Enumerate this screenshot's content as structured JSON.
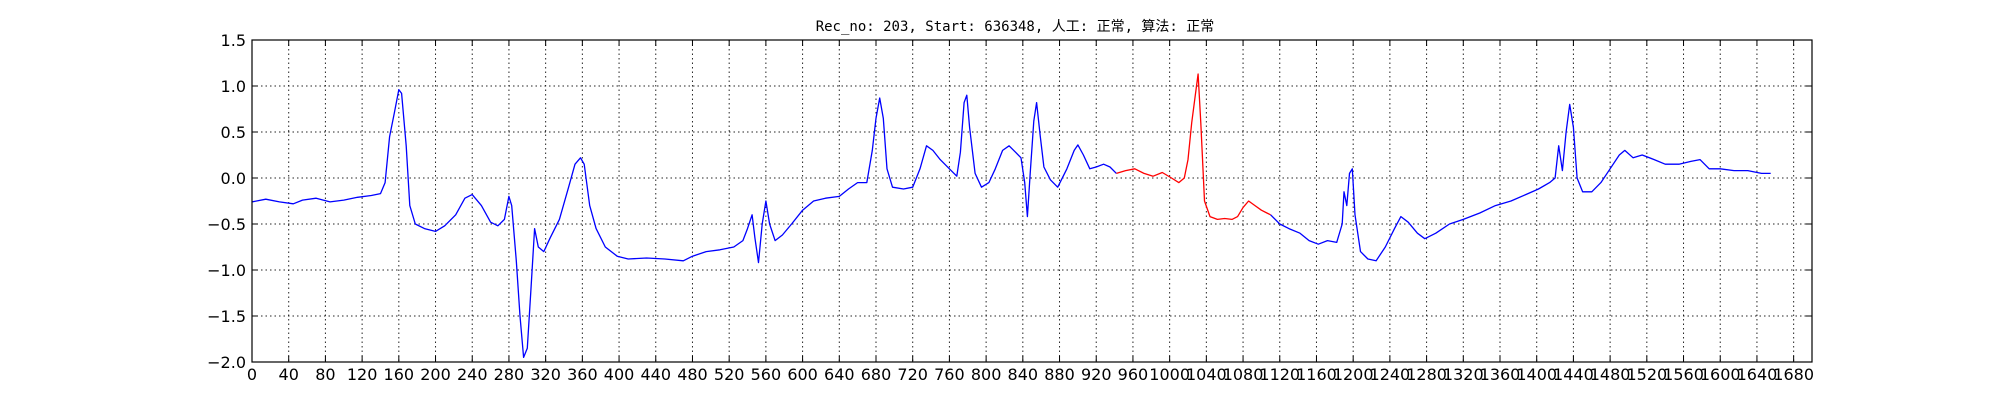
{
  "chart_data": {
    "type": "line",
    "title": "Rec_no: 203, Start: 636348, 人工: 正常, 算法: 正常",
    "xlabel": "",
    "ylabel": "",
    "xlim": [
      0,
      1700
    ],
    "ylim": [
      -2.0,
      1.5
    ],
    "grid": true,
    "yticks": [
      1.5,
      1.0,
      0.5,
      0.0,
      -0.5,
      -1.0,
      -1.5,
      -2.0
    ],
    "ytick_labels": [
      "1.5",
      "1.0",
      "0.5",
      "0.0",
      "−0.5",
      "−1.0",
      "−1.5",
      "−2.0"
    ],
    "xticks": [
      0,
      40,
      80,
      120,
      160,
      200,
      240,
      280,
      320,
      360,
      400,
      440,
      480,
      520,
      560,
      600,
      640,
      680,
      720,
      760,
      800,
      840,
      880,
      920,
      960,
      1000,
      1040,
      1080,
      1120,
      1160,
      1200,
      1240,
      1280,
      1320,
      1360,
      1400,
      1440,
      1480,
      1520,
      1560,
      1600,
      1640,
      1680
    ],
    "xtick_labels": [
      "0",
      "40",
      "80",
      "120",
      "160",
      "200",
      "240",
      "280",
      "320",
      "360",
      "400",
      "440",
      "480",
      "520",
      "560",
      "600",
      "640",
      "680",
      "720",
      "760",
      "800",
      "840",
      "880",
      "920",
      "960",
      "1000",
      "1040",
      "1080",
      "1120",
      "1160",
      "1200",
      "1240",
      "1280",
      "1320",
      "1360",
      "1400",
      "1440",
      "1480",
      "1520",
      "1560",
      "1600",
      "1640",
      "1680"
    ],
    "colors": {
      "normal": "#0000ff",
      "highlight": "#ff0000"
    },
    "series": [
      {
        "color": "#0000ff",
        "points": [
          [
            0,
            -0.26
          ],
          [
            15,
            -0.23
          ],
          [
            30,
            -0.26
          ],
          [
            45,
            -0.28
          ],
          [
            55,
            -0.24
          ],
          [
            70,
            -0.22
          ],
          [
            85,
            -0.26
          ],
          [
            100,
            -0.24
          ],
          [
            115,
            -0.21
          ],
          [
            130,
            -0.19
          ],
          [
            140,
            -0.17
          ],
          [
            145,
            -0.05
          ],
          [
            150,
            0.45
          ],
          [
            155,
            0.7
          ],
          [
            160,
            0.96
          ],
          [
            163,
            0.92
          ],
          [
            168,
            0.35
          ],
          [
            172,
            -0.3
          ],
          [
            178,
            -0.5
          ],
          [
            188,
            -0.55
          ],
          [
            200,
            -0.58
          ],
          [
            210,
            -0.52
          ],
          [
            222,
            -0.4
          ],
          [
            232,
            -0.22
          ],
          [
            240,
            -0.18
          ],
          [
            250,
            -0.3
          ],
          [
            260,
            -0.48
          ],
          [
            268,
            -0.52
          ],
          [
            275,
            -0.45
          ],
          [
            280,
            -0.2
          ],
          [
            283,
            -0.3
          ],
          [
            288,
            -0.9
          ],
          [
            292,
            -1.5
          ],
          [
            296,
            -1.95
          ],
          [
            300,
            -1.85
          ],
          [
            304,
            -1.2
          ],
          [
            308,
            -0.55
          ],
          [
            312,
            -0.75
          ],
          [
            318,
            -0.8
          ],
          [
            325,
            -0.65
          ],
          [
            335,
            -0.45
          ],
          [
            345,
            -0.1
          ],
          [
            352,
            0.15
          ],
          [
            358,
            0.22
          ],
          [
            362,
            0.15
          ],
          [
            368,
            -0.3
          ],
          [
            375,
            -0.55
          ],
          [
            385,
            -0.75
          ],
          [
            398,
            -0.85
          ],
          [
            410,
            -0.88
          ],
          [
            430,
            -0.87
          ],
          [
            450,
            -0.88
          ],
          [
            470,
            -0.9
          ],
          [
            480,
            -0.85
          ],
          [
            495,
            -0.8
          ],
          [
            510,
            -0.78
          ],
          [
            525,
            -0.75
          ],
          [
            535,
            -0.68
          ],
          [
            540,
            -0.55
          ],
          [
            545,
            -0.4
          ],
          [
            548,
            -0.65
          ],
          [
            552,
            -0.92
          ],
          [
            556,
            -0.5
          ],
          [
            560,
            -0.25
          ],
          [
            564,
            -0.5
          ],
          [
            570,
            -0.68
          ],
          [
            578,
            -0.62
          ],
          [
            588,
            -0.5
          ],
          [
            600,
            -0.35
          ],
          [
            612,
            -0.25
          ],
          [
            625,
            -0.22
          ],
          [
            640,
            -0.2
          ],
          [
            650,
            -0.12
          ],
          [
            660,
            -0.05
          ],
          [
            670,
            -0.05
          ],
          [
            676,
            0.3
          ],
          [
            680,
            0.65
          ],
          [
            684,
            0.87
          ],
          [
            688,
            0.65
          ],
          [
            692,
            0.1
          ],
          [
            698,
            -0.1
          ],
          [
            710,
            -0.12
          ],
          [
            720,
            -0.1
          ],
          [
            728,
            0.1
          ],
          [
            735,
            0.35
          ],
          [
            742,
            0.3
          ],
          [
            750,
            0.2
          ],
          [
            760,
            0.1
          ],
          [
            768,
            0.02
          ],
          [
            772,
            0.28
          ],
          [
            776,
            0.82
          ],
          [
            779,
            0.9
          ],
          [
            782,
            0.55
          ],
          [
            788,
            0.05
          ],
          [
            795,
            -0.1
          ],
          [
            803,
            -0.05
          ],
          [
            810,
            0.1
          ],
          [
            818,
            0.3
          ],
          [
            825,
            0.35
          ],
          [
            832,
            0.28
          ],
          [
            838,
            0.22
          ],
          [
            842,
            -0.05
          ],
          [
            845,
            -0.42
          ],
          [
            848,
            0.05
          ],
          [
            852,
            0.62
          ],
          [
            855,
            0.82
          ],
          [
            859,
            0.45
          ],
          [
            863,
            0.12
          ],
          [
            870,
            -0.02
          ],
          [
            878,
            -0.1
          ],
          [
            888,
            0.1
          ],
          [
            896,
            0.3
          ],
          [
            900,
            0.36
          ],
          [
            906,
            0.25
          ],
          [
            913,
            0.1
          ],
          [
            920,
            0.12
          ],
          [
            928,
            0.15
          ],
          [
            935,
            0.12
          ],
          [
            942,
            0.05
          ]
        ]
      },
      {
        "color": "#ff0000",
        "points": [
          [
            942,
            0.05
          ],
          [
            952,
            0.08
          ],
          [
            962,
            0.1
          ],
          [
            972,
            0.05
          ],
          [
            982,
            0.02
          ],
          [
            992,
            0.06
          ],
          [
            1002,
            0.0
          ],
          [
            1010,
            -0.05
          ],
          [
            1016,
            0.0
          ],
          [
            1020,
            0.2
          ],
          [
            1024,
            0.6
          ],
          [
            1028,
            0.9
          ],
          [
            1031,
            1.13
          ],
          [
            1034,
            0.6
          ],
          [
            1038,
            -0.25
          ],
          [
            1044,
            -0.42
          ],
          [
            1052,
            -0.45
          ],
          [
            1060,
            -0.44
          ],
          [
            1068,
            -0.45
          ],
          [
            1074,
            -0.42
          ],
          [
            1080,
            -0.32
          ],
          [
            1086,
            -0.25
          ],
          [
            1093,
            -0.3
          ],
          [
            1100,
            -0.35
          ],
          [
            1106,
            -0.38
          ],
          [
            1110,
            -0.4
          ]
        ]
      },
      {
        "color": "#0000ff",
        "points": [
          [
            1110,
            -0.4
          ],
          [
            1120,
            -0.5
          ],
          [
            1130,
            -0.55
          ],
          [
            1142,
            -0.6
          ],
          [
            1152,
            -0.68
          ],
          [
            1162,
            -0.72
          ],
          [
            1172,
            -0.68
          ],
          [
            1182,
            -0.7
          ],
          [
            1188,
            -0.5
          ],
          [
            1190,
            -0.15
          ],
          [
            1193,
            -0.3
          ],
          [
            1196,
            0.05
          ],
          [
            1199,
            0.1
          ],
          [
            1202,
            -0.4
          ],
          [
            1208,
            -0.8
          ],
          [
            1216,
            -0.88
          ],
          [
            1225,
            -0.9
          ],
          [
            1235,
            -0.75
          ],
          [
            1245,
            -0.55
          ],
          [
            1252,
            -0.42
          ],
          [
            1260,
            -0.48
          ],
          [
            1270,
            -0.6
          ],
          [
            1278,
            -0.66
          ],
          [
            1290,
            -0.6
          ],
          [
            1305,
            -0.5
          ],
          [
            1320,
            -0.45
          ],
          [
            1338,
            -0.38
          ],
          [
            1355,
            -0.3
          ],
          [
            1372,
            -0.25
          ],
          [
            1388,
            -0.18
          ],
          [
            1402,
            -0.12
          ],
          [
            1414,
            -0.05
          ],
          [
            1420,
            0.0
          ],
          [
            1424,
            0.35
          ],
          [
            1428,
            0.08
          ],
          [
            1432,
            0.5
          ],
          [
            1436,
            0.8
          ],
          [
            1440,
            0.55
          ],
          [
            1444,
            0.0
          ],
          [
            1450,
            -0.15
          ],
          [
            1460,
            -0.15
          ],
          [
            1470,
            -0.05
          ],
          [
            1480,
            0.1
          ],
          [
            1490,
            0.25
          ],
          [
            1496,
            0.3
          ],
          [
            1505,
            0.22
          ],
          [
            1515,
            0.25
          ],
          [
            1528,
            0.2
          ],
          [
            1540,
            0.15
          ],
          [
            1555,
            0.15
          ],
          [
            1568,
            0.18
          ],
          [
            1578,
            0.2
          ],
          [
            1588,
            0.1
          ],
          [
            1600,
            0.1
          ],
          [
            1615,
            0.08
          ],
          [
            1630,
            0.08
          ],
          [
            1645,
            0.05
          ],
          [
            1655,
            0.05
          ]
        ]
      }
    ]
  }
}
